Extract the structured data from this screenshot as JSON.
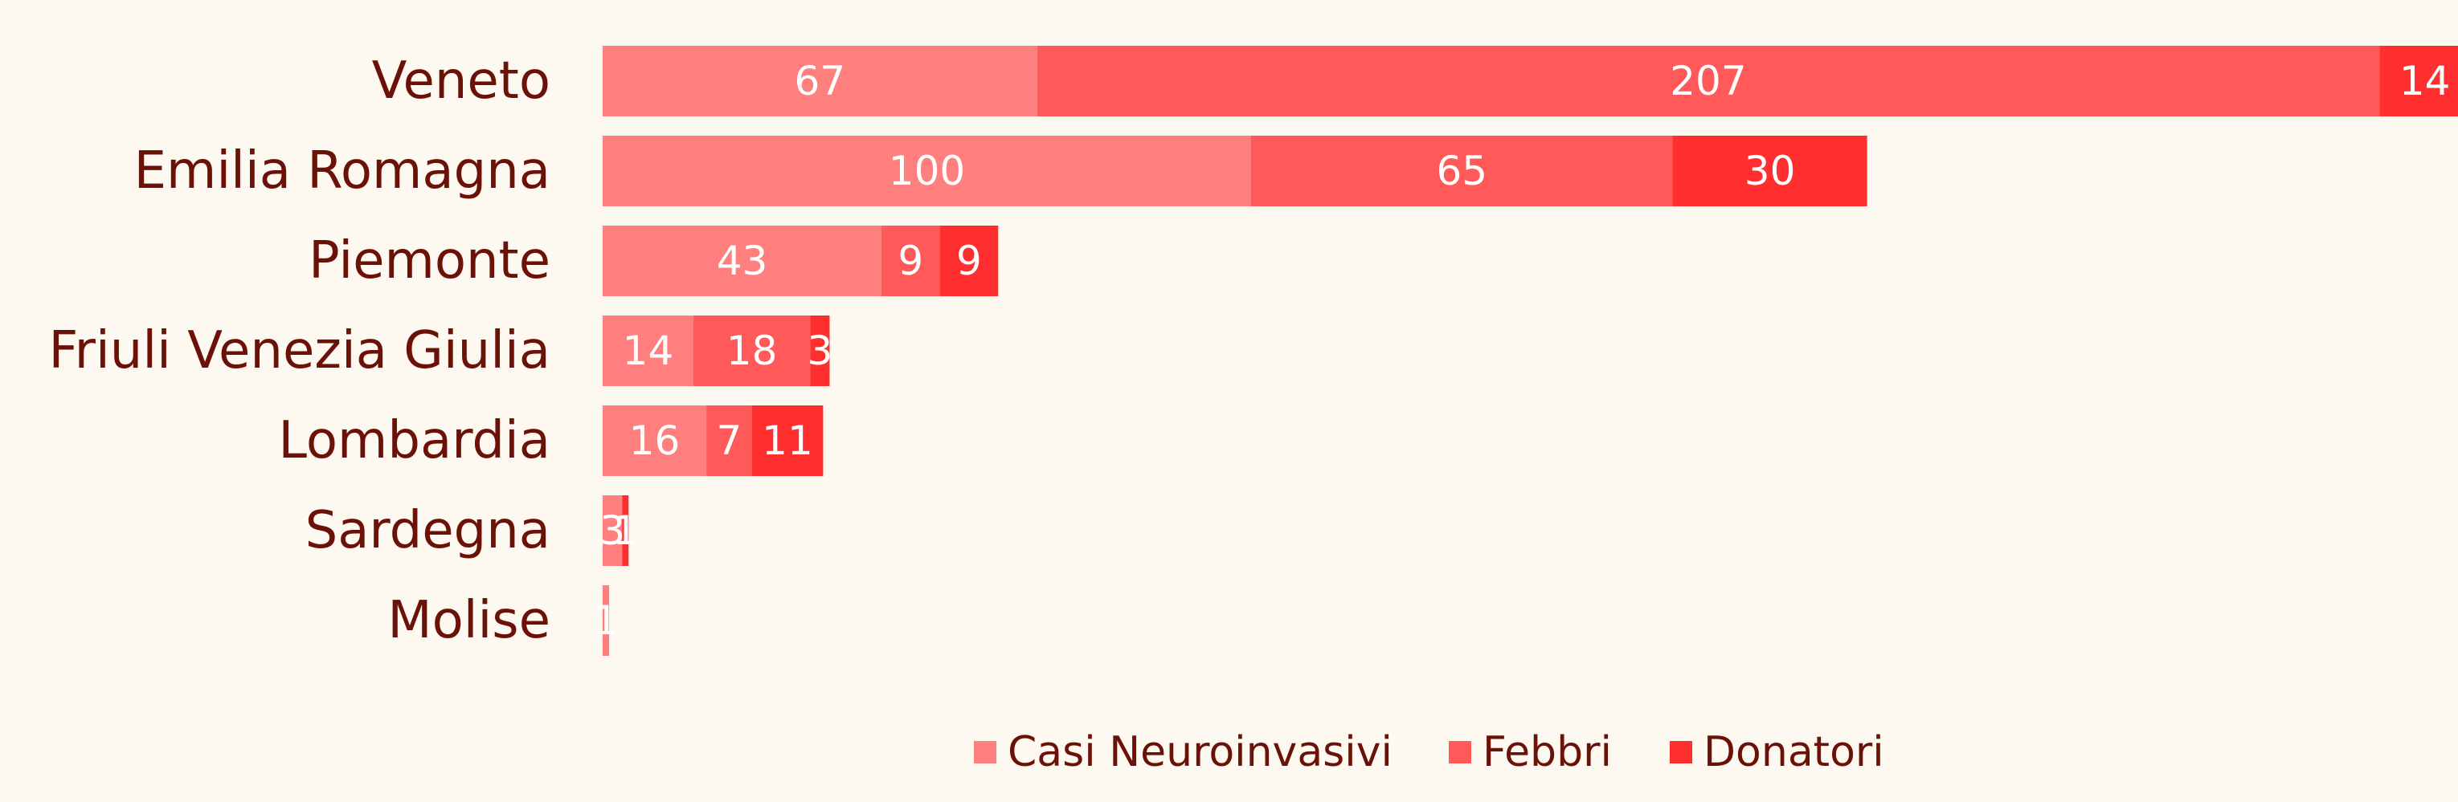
{
  "chart_data": {
    "type": "bar",
    "orientation": "horizontal",
    "stacked": true,
    "categories": [
      "Veneto",
      "Emilia Romagna",
      "Piemonte",
      "Friuli Venezia Giulia",
      "Lombardia",
      "Sardegna",
      "Molise"
    ],
    "series": [
      {
        "name": "Casi Neuroinvasivi",
        "values": [
          67,
          100,
          43,
          14,
          16,
          3,
          1
        ],
        "color": "#ff7f7f"
      },
      {
        "name": "Febbri",
        "values": [
          207,
          65,
          9,
          18,
          7,
          0,
          0
        ],
        "color": "#ff5959"
      },
      {
        "name": "Donatori",
        "values": [
          14,
          30,
          9,
          3,
          11,
          1,
          0
        ],
        "color": "#ff2f2f"
      }
    ],
    "title": "",
    "xlabel": "",
    "ylabel": "",
    "xlim": [
      0,
      288
    ],
    "grid": false,
    "legend_position": "bottom"
  }
}
